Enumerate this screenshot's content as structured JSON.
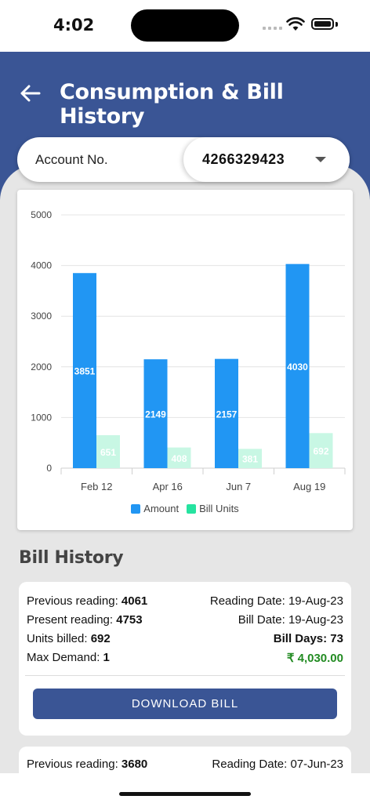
{
  "status_bar": {
    "time": "4:02"
  },
  "header": {
    "title": "Consumption & Bill History"
  },
  "account": {
    "label": "Account No.",
    "value": "4266329423"
  },
  "chart_data": {
    "type": "bar",
    "categories": [
      "Feb 12",
      "Apr 16",
      "Jun 7",
      "Aug 19"
    ],
    "series": [
      {
        "name": "Amount",
        "values": [
          3851,
          2149,
          2157,
          4030
        ],
        "color": "#2196f3"
      },
      {
        "name": "Bill Units",
        "values": [
          651,
          408,
          381,
          692
        ],
        "color": "#c8f7e4"
      }
    ],
    "y_ticks": [
      "0",
      "1000",
      "2000",
      "3000",
      "4000",
      "5000"
    ],
    "ylim": [
      0,
      5000
    ],
    "legend_colors": [
      "#2196f3",
      "#26e3a0"
    ],
    "legend_position": "bottom"
  },
  "bill_history": {
    "title": "Bill History",
    "bills": [
      {
        "prev_label": "Previous reading: ",
        "prev_value": "4061",
        "reading_date": "Reading Date: 19-Aug-23",
        "present_label": "Present reading: ",
        "present_value": "4753",
        "bill_date": "Bill Date: 19-Aug-23",
        "units_label": "Units billed: ",
        "units_value": "692",
        "bill_days": "Bill Days: 73",
        "demand_label": "Max Demand: ",
        "demand_value": "1",
        "amount": "₹ 4,030.00",
        "download_label": "DOWNLOAD BILL"
      },
      {
        "prev_label": "Previous reading: ",
        "prev_value": "3680",
        "reading_date": "Reading Date: 07-Jun-23"
      }
    ]
  }
}
